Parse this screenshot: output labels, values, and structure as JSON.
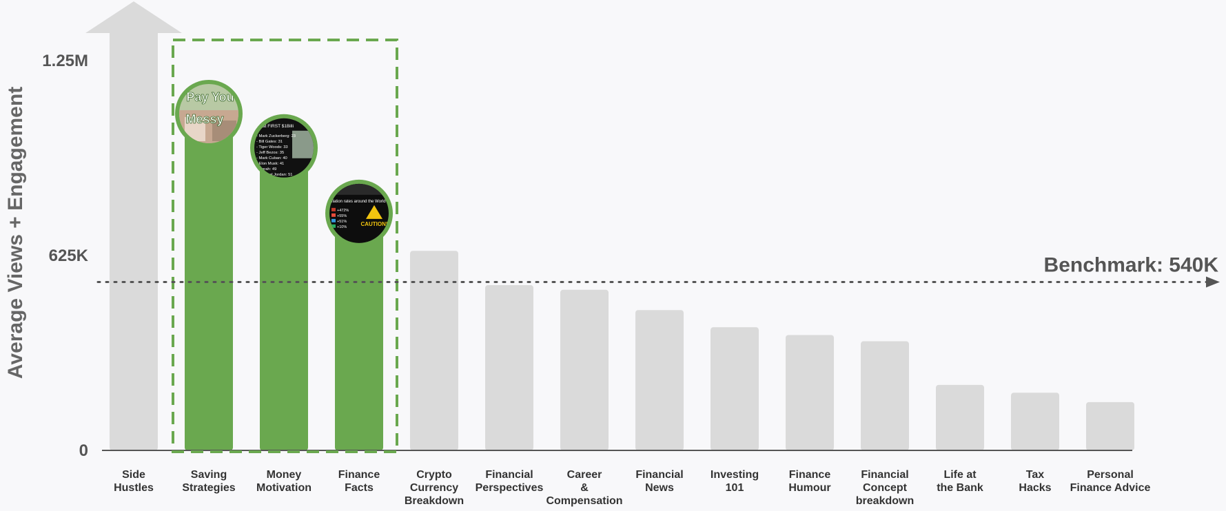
{
  "chart_data": {
    "type": "bar",
    "ylabel": "Average Views + Engagement",
    "ylim": [
      0,
      1250000
    ],
    "yticks": [
      {
        "value": 0,
        "label": "0"
      },
      {
        "value": 625000,
        "label": "625K"
      },
      {
        "value": 1250000,
        "label": "1.25M"
      }
    ],
    "categories": [
      [
        "Side",
        "Hustles"
      ],
      [
        "Saving",
        "Strategies"
      ],
      [
        "Money",
        "Motivation"
      ],
      [
        "Finance",
        "Facts"
      ],
      [
        "Crypto",
        "Currency",
        "Breakdown"
      ],
      [
        "Financial",
        "Perspectives"
      ],
      [
        "Career",
        "&",
        "Compensation"
      ],
      [
        "Financial",
        "News"
      ],
      [
        "Investing",
        "101"
      ],
      [
        "Finance",
        "Humour"
      ],
      [
        "Financial",
        "Concept",
        "breakdown"
      ],
      [
        "Life at",
        "the Bank"
      ],
      [
        "Tax",
        "Hacks"
      ],
      [
        "Personal",
        "Finance Advice"
      ]
    ],
    "values": [
      1350000,
      1080000,
      970000,
      760000,
      640000,
      530000,
      515000,
      450000,
      395000,
      370000,
      350000,
      210000,
      185000,
      155000
    ],
    "highlighted": [
      1,
      2,
      3
    ],
    "benchmark": {
      "value": 540000,
      "label": "Benchmark: 540K"
    },
    "colors": {
      "default": "#dadada",
      "highlight": "#6aa84f",
      "axis": "#555555"
    },
    "thumbnails": [
      {
        "index": 1,
        "lines": [
          "Pay You",
          "Messy"
        ]
      },
      {
        "index": 2,
        "lines": [
          "ge at FIRST $1Billi",
          "- Mark Zuckerberg: 23",
          "- Bill Gates: 31",
          "- Tiger Woods: 33",
          "- Jeff Bezos: 35",
          "- Mark Cuban: 40",
          "- Elon Musk: 41",
          "- Oprah: 49",
          "- Michael Jordan: 51"
        ]
      },
      {
        "index": 3,
        "lines": [
          "flation rates around the World",
          "+472%",
          "+55%",
          "+51%",
          "+10%",
          "CAUTION!"
        ]
      }
    ]
  }
}
